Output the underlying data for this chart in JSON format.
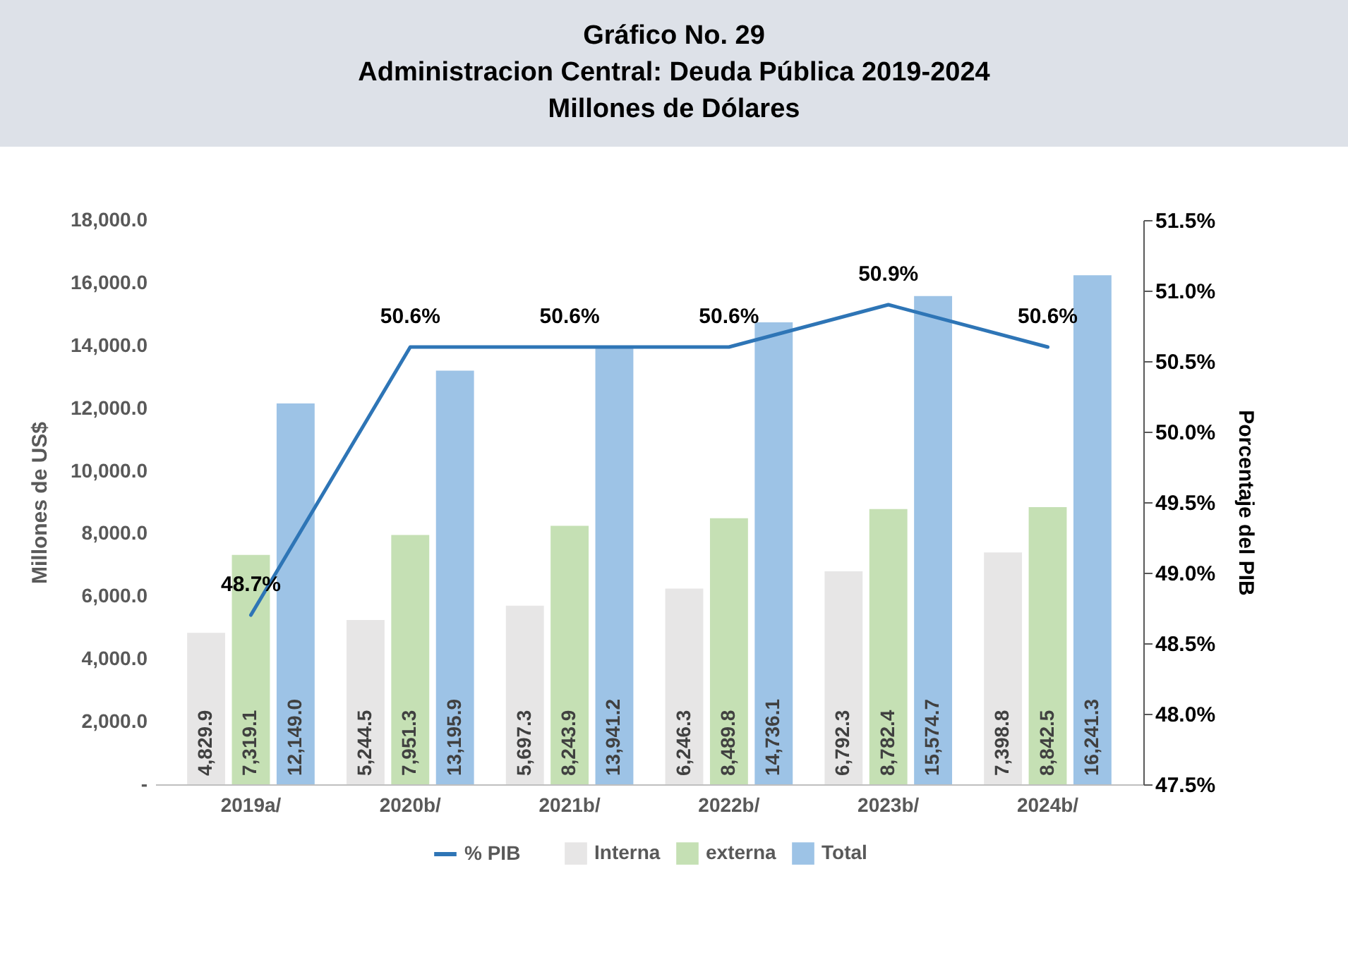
{
  "chart_data": {
    "type": "bar",
    "title": "Gráfico No. 29\nAdministracion Central: Deuda Pública  2019-2024\nMillones de Dólares",
    "categories": [
      "2019a/",
      "2020b/",
      "2021b/",
      "2022b/",
      "2023b/",
      "2024b/"
    ],
    "series": [
      {
        "name": "Interna",
        "color": "#e7e6e6",
        "values": [
          4829.9,
          5244.5,
          5697.3,
          6246.3,
          6792.3,
          7398.8
        ],
        "value_labels": [
          "4,829.9",
          "5,244.5",
          "5,697.3",
          "6,246.3",
          "6,792.3",
          "7,398.8"
        ]
      },
      {
        "name": "externa",
        "color": "#c5e0b4",
        "values": [
          7319.1,
          7951.3,
          8243.9,
          8489.8,
          8782.4,
          8842.5
        ],
        "value_labels": [
          "7,319.1",
          "7,951.3",
          "8,243.9",
          "8,489.8",
          "8,782.4",
          "8,842.5"
        ]
      },
      {
        "name": "Total",
        "color": "#9dc3e6",
        "values": [
          12149.0,
          13195.9,
          13941.2,
          14736.1,
          15574.7,
          16241.3
        ],
        "value_labels": [
          "12,149.0",
          "13,195.9",
          "13,941.2",
          "14,736.1",
          "15,574.7",
          "16,241.3"
        ]
      },
      {
        "name": "% PIB",
        "type": "line",
        "axis": "y2",
        "color": "#2e75b6",
        "values": [
          48.7,
          50.6,
          50.6,
          50.6,
          50.9,
          50.6
        ],
        "value_labels": [
          "48.7%",
          "50.6%",
          "50.6%",
          "50.6%",
          "50.9%",
          "50.6%"
        ]
      }
    ],
    "ylabel": "Millones de US$",
    "y2label": "Porcentaje del PIB",
    "ylim": [
      0,
      18000
    ],
    "yticks": [
      {
        "value": 0,
        "label": "-"
      },
      {
        "value": 2000,
        "label": "2,000.0"
      },
      {
        "value": 4000,
        "label": "4,000.0"
      },
      {
        "value": 6000,
        "label": "6,000.0"
      },
      {
        "value": 8000,
        "label": "8,000.0"
      },
      {
        "value": 10000,
        "label": "10,000.0"
      },
      {
        "value": 12000,
        "label": "12,000.0"
      },
      {
        "value": 14000,
        "label": "14,000.0"
      },
      {
        "value": 16000,
        "label": "16,000.0"
      },
      {
        "value": 18000,
        "label": "18,000.0"
      }
    ],
    "y2lim": [
      47.5,
      51.5
    ],
    "y2ticks": [
      {
        "value": 47.5,
        "label": "47.5%"
      },
      {
        "value": 48,
        "label": "48.0%"
      },
      {
        "value": 48.5,
        "label": "48.5%"
      },
      {
        "value": 49,
        "label": "49.0%"
      },
      {
        "value": 49.5,
        "label": "49.5%"
      },
      {
        "value": 50,
        "label": "50.0%"
      },
      {
        "value": 50.5,
        "label": "50.5%"
      },
      {
        "value": 51,
        "label": "51.0%"
      },
      {
        "value": 51.5,
        "label": "51.5%"
      }
    ],
    "grid": false,
    "legend": "bottom"
  }
}
